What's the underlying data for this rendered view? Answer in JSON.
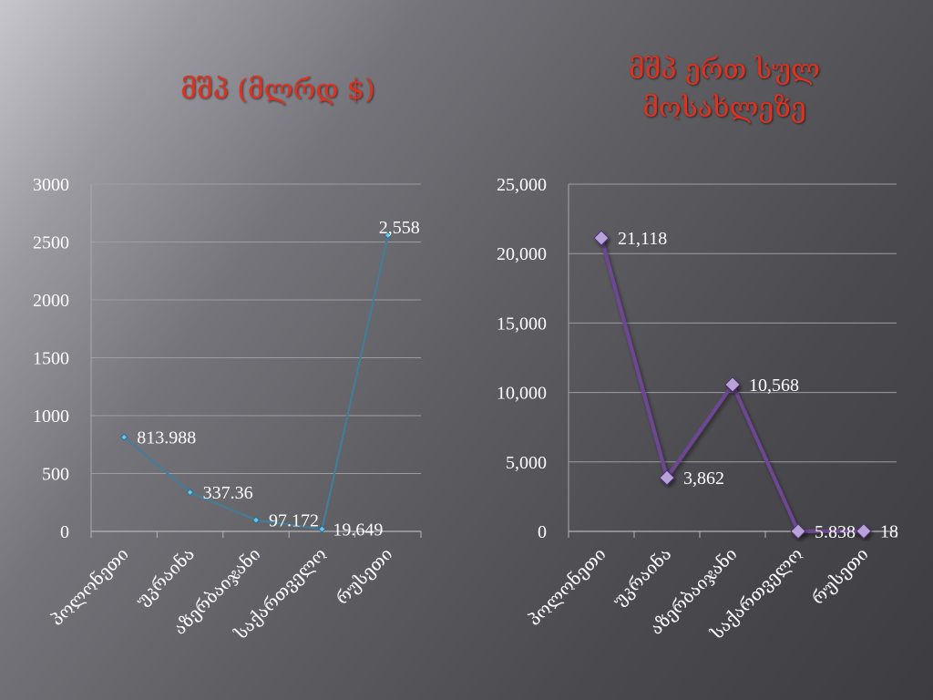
{
  "chart_data": [
    {
      "type": "line",
      "title": "მშპ  (მლრდ $)",
      "xlabel": "",
      "ylabel": "",
      "categories": [
        "პოლონეთი",
        "უკრაინა",
        "აზერბაიჯანი",
        "საქართველო",
        "რუსეთი"
      ],
      "values": [
        813.988,
        337.36,
        97.172,
        19.649,
        2558
      ],
      "data_labels": [
        "813.988",
        "337.36",
        "97.172",
        "19.649",
        "2,558"
      ],
      "ylim": [
        0,
        3000
      ],
      "yticks": [
        0,
        500,
        1000,
        1500,
        2000,
        2500,
        3000
      ],
      "ytick_labels": [
        "0",
        "500",
        "1000",
        "1500",
        "2000",
        "2500",
        "3000"
      ],
      "grid": true,
      "color": "#3f7f9c",
      "marker_color": "#6fc3e6"
    },
    {
      "type": "line",
      "title": "მშპ ერთ სულ მოსახლეზე",
      "xlabel": "",
      "ylabel": "",
      "categories": [
        "პოლონეთი",
        "უკრაინა",
        "აზერბაიჯანი",
        "საქართველო",
        "რუსეთი"
      ],
      "values": [
        21118,
        3862,
        10568,
        5.838,
        18
      ],
      "data_labels": [
        "21,118",
        "3,862",
        "10,568",
        "5.838",
        "18"
      ],
      "ylim": [
        0,
        25000
      ],
      "yticks": [
        0,
        5000,
        10000,
        15000,
        20000,
        25000
      ],
      "ytick_labels": [
        "0",
        "5,000",
        "10,000",
        "15,000",
        "20,000",
        "25,000"
      ],
      "grid": true,
      "color": "#6d4693",
      "marker_color": "#b9a2d8"
    }
  ]
}
